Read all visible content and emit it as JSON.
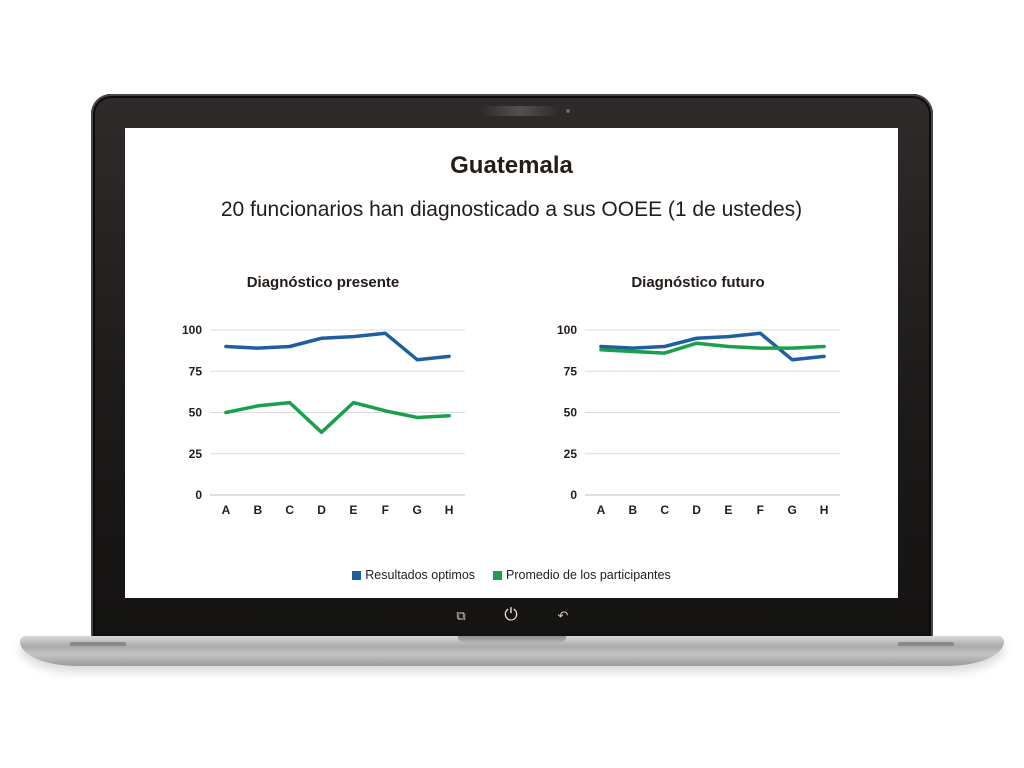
{
  "slide": {
    "title": "Guatemala",
    "subtitle": "20 funcionarios han diagnosticado a sus OOEE (1 de ustedes)"
  },
  "legend": {
    "items": [
      {
        "label": "Resultados optimos",
        "color": "#1f5fa0"
      },
      {
        "label": "Promedio de los participantes",
        "color": "#1aa04a"
      }
    ]
  },
  "device": {
    "nav_icons": [
      "recent-apps-icon",
      "power-icon",
      "back-icon"
    ]
  },
  "chart_data": [
    {
      "type": "line",
      "title": "Diagnóstico presente",
      "categories": [
        "A",
        "B",
        "C",
        "D",
        "E",
        "F",
        "G",
        "H"
      ],
      "ylim": [
        0,
        100
      ],
      "yticks": [
        0,
        25,
        50,
        75,
        100
      ],
      "grid": true,
      "series": [
        {
          "name": "Resultados optimos",
          "color": "#1f5fa0",
          "values": [
            90,
            89,
            90,
            95,
            96,
            98,
            82,
            84
          ]
        },
        {
          "name": "Promedio de los participantes",
          "color": "#1aa04a",
          "values": [
            50,
            54,
            56,
            38,
            56,
            51,
            47,
            48
          ]
        }
      ]
    },
    {
      "type": "line",
      "title": "Diagnóstico futuro",
      "categories": [
        "A",
        "B",
        "C",
        "D",
        "E",
        "F",
        "G",
        "H"
      ],
      "ylim": [
        0,
        100
      ],
      "yticks": [
        0,
        25,
        50,
        75,
        100
      ],
      "grid": true,
      "series": [
        {
          "name": "Resultados optimos",
          "color": "#1f5fa0",
          "values": [
            90,
            89,
            90,
            95,
            96,
            98,
            82,
            84
          ]
        },
        {
          "name": "Promedio de los participantes",
          "color": "#1aa04a",
          "values": [
            88,
            87,
            86,
            92,
            90,
            89,
            89,
            90
          ]
        }
      ]
    }
  ]
}
